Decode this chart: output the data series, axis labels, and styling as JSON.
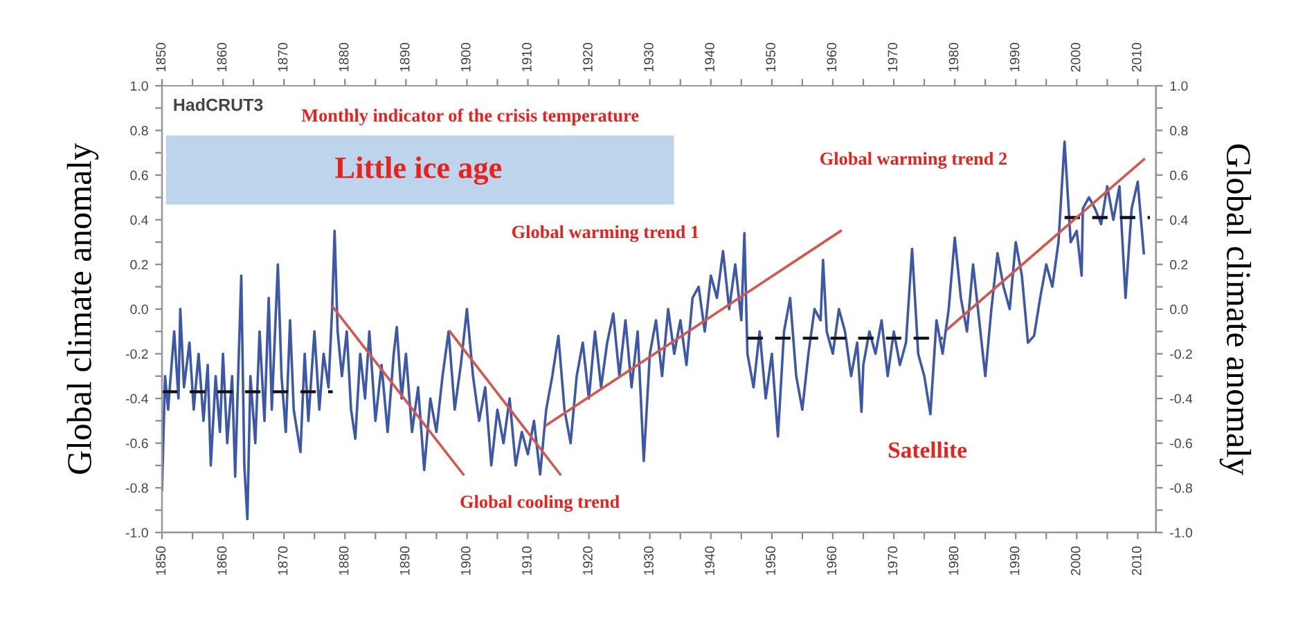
{
  "chart_data": {
    "type": "line",
    "ylabel": "Global climate anomaly",
    "y2label": "Global climate anomaly",
    "xlim": [
      1850,
      2013
    ],
    "xticks": [
      1850,
      {
        "value": 1855,
        "label": null
      },
      1860,
      {
        "value": 1865,
        "label": null
      },
      1870,
      {
        "value": 1875,
        "label": null
      },
      1880,
      {
        "value": 1885,
        "label": null
      },
      1890,
      {
        "value": 1895,
        "label": null
      },
      1900,
      {
        "value": 1905,
        "label": null
      },
      1910,
      {
        "value": 1915,
        "label": null
      },
      1920,
      {
        "value": 1925,
        "label": null
      },
      1930,
      {
        "value": 1935,
        "label": null
      },
      1940,
      {
        "value": 1945,
        "label": null
      },
      1950,
      {
        "value": 1955,
        "label": null
      },
      1960,
      {
        "value": 1965,
        "label": null
      },
      1970,
      {
        "value": 1975,
        "label": null
      },
      1980,
      {
        "value": 1985,
        "label": null
      },
      1990,
      {
        "value": 1995,
        "label": null
      },
      2000,
      {
        "value": 2005,
        "label": null
      },
      2010
    ],
    "x2lim": [
      1850,
      2013
    ],
    "x2ticks": [
      1850,
      {
        "value": 1855,
        "label": null
      },
      1860,
      {
        "value": 1865,
        "label": null
      },
      1870,
      {
        "value": 1875,
        "label": null
      },
      1880,
      {
        "value": 1885,
        "label": null
      },
      1890,
      {
        "value": 1895,
        "label": null
      },
      1900,
      {
        "value": 1905,
        "label": null
      },
      1910,
      {
        "value": 1915,
        "label": null
      },
      1920,
      {
        "value": 1925,
        "label": null
      },
      1930,
      {
        "value": 1935,
        "label": null
      },
      1940,
      {
        "value": 1945,
        "label": null
      },
      1950,
      {
        "value": 1955,
        "label": null
      },
      1960,
      {
        "value": 1965,
        "label": null
      },
      1970,
      {
        "value": 1975,
        "label": null
      },
      1980,
      {
        "value": 1985,
        "label": null
      },
      1990,
      {
        "value": 1995,
        "label": null
      },
      2000,
      {
        "value": 2005,
        "label": null
      },
      2010
    ],
    "ylim": [
      -1.0,
      1.0
    ],
    "yticks": [
      {
        "value": -1.0,
        "label": "-1.0"
      },
      {
        "value": -0.9,
        "label": null
      },
      {
        "value": -0.8,
        "label": "-0.8"
      },
      {
        "value": -0.7,
        "label": null
      },
      {
        "value": -0.6,
        "label": "-0.6"
      },
      {
        "value": -0.5,
        "label": null
      },
      {
        "value": -0.4,
        "label": "-0.4"
      },
      {
        "value": -0.3,
        "label": null
      },
      {
        "value": -0.2,
        "label": "-0.2"
      },
      {
        "value": -0.1,
        "label": null
      },
      {
        "value": 0.0,
        "label": "0.0"
      },
      {
        "value": 0.1,
        "label": null
      },
      {
        "value": 0.2,
        "label": "0.2"
      },
      {
        "value": 0.3,
        "label": null
      },
      {
        "value": 0.4,
        "label": "0.4"
      },
      {
        "value": 0.5,
        "label": null
      },
      {
        "value": 0.6,
        "label": "0.6"
      },
      {
        "value": 0.7,
        "label": null
      },
      {
        "value": 0.8,
        "label": "0.8"
      },
      {
        "value": 0.9,
        "label": null
      },
      {
        "value": 1.0,
        "label": "1.0"
      }
    ],
    "y2lim": [
      -1.0,
      1.0
    ],
    "y2ticks": [
      {
        "value": -1.0,
        "label": "-1.0"
      },
      {
        "value": -0.9,
        "label": null
      },
      {
        "value": -0.8,
        "label": "-0.8"
      },
      {
        "value": -0.7,
        "label": null
      },
      {
        "value": -0.6,
        "label": "-0.6"
      },
      {
        "value": -0.5,
        "label": null
      },
      {
        "value": -0.4,
        "label": "-0.4"
      },
      {
        "value": -0.3,
        "label": null
      },
      {
        "value": -0.2,
        "label": "-0.2"
      },
      {
        "value": -0.1,
        "label": null
      },
      {
        "value": 0.0,
        "label": "0.0"
      },
      {
        "value": 0.1,
        "label": null
      },
      {
        "value": 0.2,
        "label": "0.2"
      },
      {
        "value": 0.3,
        "label": null
      },
      {
        "value": 0.4,
        "label": "0.4"
      },
      {
        "value": 0.5,
        "label": null
      },
      {
        "value": 0.6,
        "label": "0.6"
      },
      {
        "value": 0.7,
        "label": null
      },
      {
        "value": 0.8,
        "label": "0.8"
      },
      {
        "value": 0.9,
        "label": null
      },
      {
        "value": 1.0,
        "label": "1.0"
      }
    ],
    "series": [
      {
        "color": "#3d58a6",
        "line_style": "solid",
        "x": [
          1850,
          1850.5,
          1851,
          1852,
          1852.7,
          1853,
          1853.6,
          1854.5,
          1855.2,
          1856,
          1856.8,
          1857.5,
          1858,
          1858.8,
          1859.5,
          1860,
          1860.7,
          1861.5,
          1862,
          1862.6,
          1863,
          1863.5,
          1864,
          1864.5,
          1865.3,
          1866,
          1866.8,
          1867.5,
          1868,
          1869,
          1869.6,
          1870.3,
          1871,
          1871.6,
          1872.7,
          1873.4,
          1874,
          1875,
          1875.8,
          1876.5,
          1877.3,
          1877.9,
          1878.3,
          1878.8,
          1879.5,
          1880.3,
          1881,
          1881.7,
          1882.5,
          1883.3,
          1884,
          1885,
          1886,
          1887,
          1888,
          1888.5,
          1889.3,
          1890,
          1891,
          1892,
          1893,
          1894,
          1895,
          1896,
          1897,
          1898,
          1899,
          1900,
          1901,
          1902,
          1903,
          1904,
          1905,
          1906,
          1907,
          1908,
          1909,
          1910,
          1911,
          1912,
          1913,
          1914,
          1915,
          1916,
          1917,
          1918,
          1919,
          1920,
          1921,
          1922,
          1923,
          1924,
          1925,
          1926,
          1927,
          1928,
          1929,
          1930,
          1931,
          1932,
          1933,
          1934,
          1935,
          1936,
          1937,
          1938,
          1939,
          1940,
          1941,
          1942,
          1943,
          1944,
          1945,
          1945.5,
          1946,
          1947,
          1948,
          1949,
          1950,
          1951,
          1952,
          1953,
          1954,
          1955,
          1956,
          1957,
          1958,
          1958.4,
          1959,
          1960,
          1961,
          1962,
          1963,
          1964,
          1964.7,
          1965,
          1966,
          1967,
          1968,
          1969,
          1970,
          1971,
          1972,
          1973,
          1974,
          1975,
          1976,
          1977,
          1978,
          1979,
          1980,
          1981,
          1982,
          1983,
          1984,
          1985,
          1986,
          1987,
          1988,
          1989,
          1990,
          1991,
          1992,
          1993,
          1994,
          1995,
          1996,
          1997,
          1998,
          1999,
          2000,
          2000.8,
          2001,
          2002,
          2003,
          2004,
          2005,
          2006,
          2007,
          2008,
          2009,
          2010,
          2011
        ],
        "values": [
          -0.81,
          -0.3,
          -0.45,
          -0.1,
          -0.4,
          0.0,
          -0.35,
          -0.15,
          -0.45,
          -0.2,
          -0.5,
          -0.25,
          -0.7,
          -0.3,
          -0.55,
          -0.2,
          -0.6,
          -0.3,
          -0.75,
          -0.2,
          0.15,
          -0.7,
          -0.94,
          -0.3,
          -0.6,
          -0.1,
          -0.5,
          0.05,
          -0.45,
          0.2,
          -0.3,
          -0.55,
          -0.05,
          -0.45,
          -0.64,
          -0.2,
          -0.5,
          -0.1,
          -0.45,
          -0.2,
          -0.35,
          0.0,
          0.35,
          -0.1,
          -0.3,
          -0.1,
          -0.45,
          -0.58,
          -0.2,
          -0.4,
          -0.1,
          -0.5,
          -0.25,
          -0.55,
          -0.2,
          -0.08,
          -0.4,
          -0.2,
          -0.55,
          -0.35,
          -0.72,
          -0.4,
          -0.55,
          -0.3,
          -0.1,
          -0.45,
          -0.25,
          0.0,
          -0.3,
          -0.5,
          -0.35,
          -0.7,
          -0.45,
          -0.6,
          -0.4,
          -0.7,
          -0.55,
          -0.65,
          -0.5,
          -0.74,
          -0.45,
          -0.3,
          -0.12,
          -0.45,
          -0.6,
          -0.3,
          -0.15,
          -0.4,
          -0.1,
          -0.35,
          -0.15,
          -0.02,
          -0.3,
          -0.05,
          -0.35,
          -0.1,
          -0.68,
          -0.2,
          -0.05,
          -0.3,
          0.0,
          -0.2,
          -0.05,
          -0.25,
          0.05,
          0.1,
          -0.1,
          0.15,
          0.05,
          0.26,
          0.0,
          0.2,
          -0.05,
          0.34,
          -0.2,
          -0.35,
          -0.1,
          -0.4,
          -0.2,
          -0.57,
          -0.1,
          0.05,
          -0.3,
          -0.45,
          -0.2,
          0.0,
          -0.05,
          0.22,
          -0.1,
          -0.2,
          0.0,
          -0.1,
          -0.3,
          -0.15,
          -0.46,
          -0.25,
          -0.1,
          -0.2,
          -0.05,
          -0.3,
          -0.1,
          -0.25,
          -0.15,
          0.27,
          -0.2,
          -0.3,
          -0.47,
          -0.05,
          -0.2,
          0.0,
          0.32,
          0.05,
          -0.1,
          0.2,
          -0.05,
          -0.3,
          0.0,
          0.25,
          0.1,
          0.0,
          0.3,
          0.15,
          -0.15,
          -0.12,
          0.05,
          0.2,
          0.1,
          0.3,
          0.75,
          0.3,
          0.35,
          0.15,
          0.45,
          0.5,
          0.45,
          0.38,
          0.55,
          0.4,
          0.55,
          0.05,
          0.45,
          0.57,
          0.25
        ]
      },
      {
        "type": "line",
        "color": "#111111",
        "line_style": "dashed",
        "x": [
          1850,
          1878
        ],
        "values": [
          -0.37,
          -0.37
        ]
      },
      {
        "type": "line",
        "color": "#111111",
        "line_style": "dashed",
        "x": [
          1946,
          1978
        ],
        "values": [
          -0.13,
          -0.13
        ]
      },
      {
        "type": "line",
        "color": "#111111",
        "line_style": "dashed",
        "x": [
          1998,
          2012
        ],
        "values": [
          0.41,
          0.41
        ]
      },
      {
        "type": "line",
        "color": "#d4574e",
        "line_style": "solid",
        "x": [
          1878,
          1899.4
        ],
        "values": [
          0.01,
          -0.74
        ]
      },
      {
        "type": "line",
        "color": "#d4574e",
        "line_style": "solid",
        "x": [
          1897.2,
          1915.3
        ],
        "values": [
          -0.1,
          -0.74
        ]
      },
      {
        "type": "line",
        "color": "#d4574e",
        "line_style": "solid",
        "x": [
          1913,
          1961.3
        ],
        "values": [
          -0.52,
          0.35
        ]
      },
      {
        "type": "line",
        "color": "#d4574e",
        "line_style": "solid",
        "x": [
          1978.8,
          2011
        ],
        "values": [
          -0.09,
          0.67
        ]
      }
    ],
    "annotations": [
      "HadCRUT3",
      "Monthly indicator of the crisis temperature",
      "Little ice age",
      "Global warming trend 1",
      "Global warming trend 2",
      "Global cooling trend",
      "Satellite"
    ]
  }
}
